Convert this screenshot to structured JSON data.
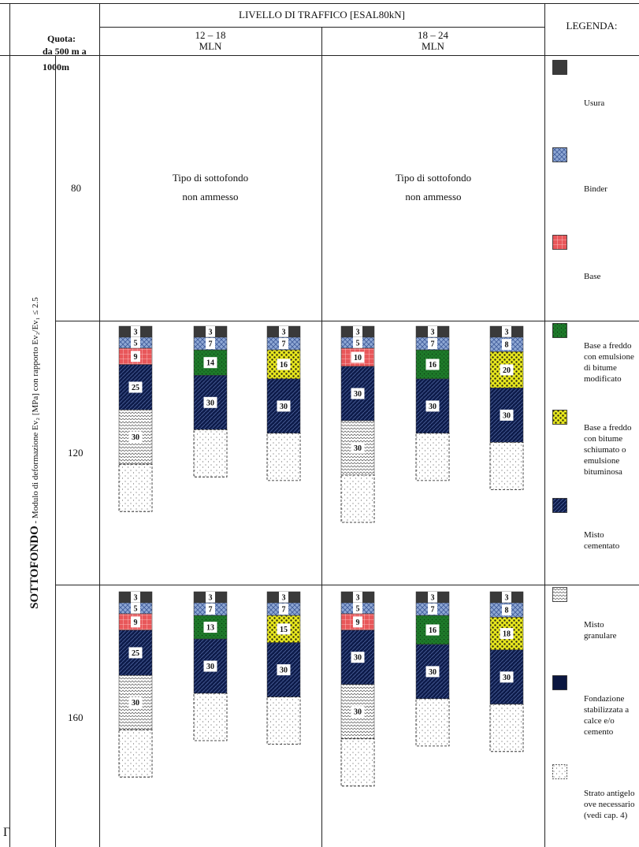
{
  "header": {
    "title": "LIVELLO DI TRAFFICO [ESAL80kN]",
    "legend_title": "LEGENDA:",
    "traffic_range_1": {
      "range": "12 – 18",
      "unit": "MLN"
    },
    "traffic_range_2": {
      "range": "18 – 24",
      "unit": "MLN"
    },
    "quota_line_1": "Quota:",
    "quota_line_2": "da 500 m a",
    "quota_line_3": "1000m"
  },
  "side_title": {
    "main": "SOTTOFONDO",
    "rest": " - Modulo di deformazione Ev₂ [MPa] con rapporto Ev₂/Ev₁ ≤ 2.5"
  },
  "rows": [
    {
      "modulus": "80",
      "not_allowed_line_1": "Tipo di sottofondo",
      "not_allowed_line_2": "non ammesso"
    },
    {
      "modulus": "120"
    },
    {
      "modulus": "160"
    }
  ],
  "layer_types": {
    "usura": {
      "color": "#3a3a3a"
    },
    "binder": {
      "color": "#8fa8d4"
    },
    "base": {
      "color": "#e8575a"
    },
    "base_freddo_emulsione": {
      "color": "#1e7a2a"
    },
    "base_freddo_schiumato": {
      "color": "#e8e81e"
    },
    "misto_cementato": {
      "color": "#0d1b4a"
    },
    "misto_granulare": {
      "color": "#ffffff"
    },
    "fondazione_stabilizzata": {
      "color": "#0a1640"
    },
    "antigelo": {
      "color": "#ffffff"
    }
  },
  "pavement_sections": [
    {
      "modulus": "120",
      "traffic": "12 – 18",
      "layers": [
        {
          "type": "usura",
          "thickness": "3"
        },
        {
          "type": "binder",
          "thickness": "5"
        },
        {
          "type": "base",
          "thickness": "9"
        },
        {
          "type": "misto_cementato",
          "thickness": "25"
        },
        {
          "type": "misto_granulare",
          "thickness": "30"
        },
        {
          "type": "antigelo",
          "thickness": ""
        }
      ]
    },
    {
      "modulus": "120",
      "traffic": "12 – 18",
      "layers": [
        {
          "type": "usura",
          "thickness": "3"
        },
        {
          "type": "binder",
          "thickness": "7"
        },
        {
          "type": "base_freddo_emulsione",
          "thickness": "14"
        },
        {
          "type": "misto_cementato",
          "thickness": "30"
        },
        {
          "type": "antigelo",
          "thickness": ""
        }
      ]
    },
    {
      "modulus": "120",
      "traffic": "12 – 18",
      "layers": [
        {
          "type": "usura",
          "thickness": "3"
        },
        {
          "type": "binder",
          "thickness": "7"
        },
        {
          "type": "base_freddo_schiumato",
          "thickness": "16"
        },
        {
          "type": "misto_cementato",
          "thickness": "30"
        },
        {
          "type": "antigelo",
          "thickness": ""
        }
      ]
    },
    {
      "modulus": "120",
      "traffic": "18 – 24",
      "layers": [
        {
          "type": "usura",
          "thickness": "3"
        },
        {
          "type": "binder",
          "thickness": "5"
        },
        {
          "type": "base",
          "thickness": "10"
        },
        {
          "type": "misto_cementato",
          "thickness": "30"
        },
        {
          "type": "misto_granulare",
          "thickness": "30"
        },
        {
          "type": "antigelo",
          "thickness": ""
        }
      ]
    },
    {
      "modulus": "120",
      "traffic": "18 – 24",
      "layers": [
        {
          "type": "usura",
          "thickness": "3"
        },
        {
          "type": "binder",
          "thickness": "7"
        },
        {
          "type": "base_freddo_emulsione",
          "thickness": "16"
        },
        {
          "type": "misto_cementato",
          "thickness": "30"
        },
        {
          "type": "antigelo",
          "thickness": ""
        }
      ]
    },
    {
      "modulus": "120",
      "traffic": "18 – 24",
      "layers": [
        {
          "type": "usura",
          "thickness": "3"
        },
        {
          "type": "binder",
          "thickness": "8"
        },
        {
          "type": "base_freddo_schiumato",
          "thickness": "20"
        },
        {
          "type": "misto_cementato",
          "thickness": "30"
        },
        {
          "type": "antigelo",
          "thickness": ""
        }
      ]
    },
    {
      "modulus": "160",
      "traffic": "12 – 18",
      "layers": [
        {
          "type": "usura",
          "thickness": "3"
        },
        {
          "type": "binder",
          "thickness": "5"
        },
        {
          "type": "base",
          "thickness": "9"
        },
        {
          "type": "misto_cementato",
          "thickness": "25"
        },
        {
          "type": "misto_granulare",
          "thickness": "30"
        },
        {
          "type": "antigelo",
          "thickness": ""
        }
      ]
    },
    {
      "modulus": "160",
      "traffic": "12 – 18",
      "layers": [
        {
          "type": "usura",
          "thickness": "3"
        },
        {
          "type": "binder",
          "thickness": "7"
        },
        {
          "type": "base_freddo_emulsione",
          "thickness": "13"
        },
        {
          "type": "misto_cementato",
          "thickness": "30"
        },
        {
          "type": "antigelo",
          "thickness": ""
        }
      ]
    },
    {
      "modulus": "160",
      "traffic": "12 – 18",
      "layers": [
        {
          "type": "usura",
          "thickness": "3"
        },
        {
          "type": "binder",
          "thickness": "7"
        },
        {
          "type": "base_freddo_schiumato",
          "thickness": "15"
        },
        {
          "type": "misto_cementato",
          "thickness": "30"
        },
        {
          "type": "antigelo",
          "thickness": ""
        }
      ]
    },
    {
      "modulus": "160",
      "traffic": "18 – 24",
      "layers": [
        {
          "type": "usura",
          "thickness": "3"
        },
        {
          "type": "binder",
          "thickness": "5"
        },
        {
          "type": "base",
          "thickness": "9"
        },
        {
          "type": "misto_cementato",
          "thickness": "30"
        },
        {
          "type": "misto_granulare",
          "thickness": "30"
        },
        {
          "type": "antigelo",
          "thickness": ""
        }
      ]
    },
    {
      "modulus": "160",
      "traffic": "18 – 24",
      "layers": [
        {
          "type": "usura",
          "thickness": "3"
        },
        {
          "type": "binder",
          "thickness": "7"
        },
        {
          "type": "base_freddo_emulsione",
          "thickness": "16"
        },
        {
          "type": "misto_cementato",
          "thickness": "30"
        },
        {
          "type": "antigelo",
          "thickness": ""
        }
      ]
    },
    {
      "modulus": "160",
      "traffic": "18 – 24",
      "layers": [
        {
          "type": "usura",
          "thickness": "3"
        },
        {
          "type": "binder",
          "thickness": "8"
        },
        {
          "type": "base_freddo_schiumato",
          "thickness": "18"
        },
        {
          "type": "misto_cementato",
          "thickness": "30"
        },
        {
          "type": "antigelo",
          "thickness": ""
        }
      ]
    }
  ],
  "legend": [
    {
      "type": "usura",
      "label": "Usura"
    },
    {
      "type": "binder",
      "label": "Binder"
    },
    {
      "type": "base",
      "label": "Base"
    },
    {
      "type": "base_freddo_emulsione",
      "label": "Base a freddo\ncon emulsione\ndi bitume\nmodificato"
    },
    {
      "type": "base_freddo_schiumato",
      "label": "Base a freddo\ncon bitume\nschiumato o\nemulsione\nbituminosa"
    },
    {
      "type": "misto_cementato",
      "label": "Misto\ncementato"
    },
    {
      "type": "misto_granulare",
      "label": "Misto\ngranulare"
    },
    {
      "type": "fondazione_stabilizzata",
      "label": "Fondazione\nstabilizzata a\ncalce e/o\ncemento"
    },
    {
      "type": "antigelo",
      "label": "Strato antigelo\nove necessario\n(vedi cap. 4)"
    }
  ],
  "corner_mark": "Γ"
}
